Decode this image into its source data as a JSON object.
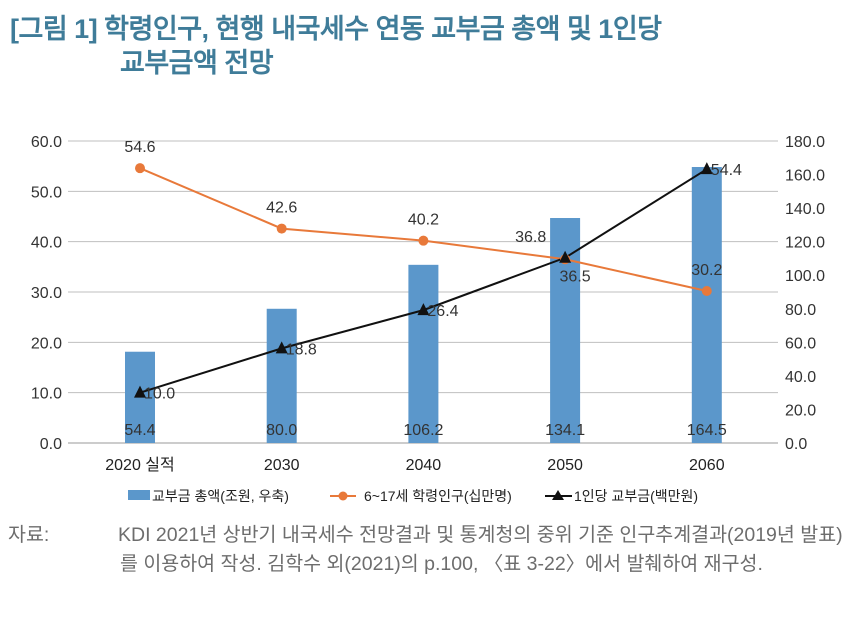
{
  "figure": {
    "title_line1": "[그림 1] 학령인구, 현행 내국세수 연동 교부금 총액 및 1인당",
    "title_line2": "교부금액 전망"
  },
  "source": {
    "label": "자료:",
    "text": "KDI 2021년 상반기 내국세수 전망결과 및 통계청의 중위 기준 인구추계결과(2019년 발표)를 이용하여 작성. 김학수 외(2021)의 p.100, 〈표 3-22〉에서 발췌하여 재구성."
  },
  "chart_data": {
    "type": "bar+line",
    "categories": [
      "2020 실적",
      "2030",
      "2040",
      "2050",
      "2060"
    ],
    "left_axis": {
      "range": [
        0,
        60
      ],
      "ticks": [
        "0.0",
        "10.0",
        "20.0",
        "30.0",
        "40.0",
        "50.0",
        "60.0"
      ]
    },
    "right_axis": {
      "range": [
        0,
        180
      ],
      "ticks": [
        "0.0",
        "20.0",
        "40.0",
        "60.0",
        "80.0",
        "100.0",
        "120.0",
        "140.0",
        "160.0",
        "180.0"
      ]
    },
    "grid": true,
    "legend_position": "bottom",
    "series": [
      {
        "name": "교부금 총액(조원, 우축)",
        "type": "bar",
        "axis": "right",
        "color": "#5b97cb",
        "values": [
          54.4,
          80.0,
          106.2,
          134.1,
          164.5
        ],
        "labels": [
          "54.4",
          "80.0",
          "106.2",
          "134.1",
          "164.5"
        ]
      },
      {
        "name": "6~17세 학령인구(십만명)",
        "type": "line",
        "marker": "circle",
        "axis": "left",
        "color": "#e8793a",
        "values": [
          54.6,
          42.6,
          40.2,
          36.5,
          30.2
        ],
        "labels": [
          "54.6",
          "42.6",
          "40.2",
          "36.5",
          "30.2"
        ]
      },
      {
        "name": "1인당 교부금(백만원)",
        "type": "line",
        "marker": "triangle",
        "axis": "left",
        "color": "#111111",
        "values": [
          10.0,
          18.8,
          26.4,
          36.8,
          54.4
        ],
        "labels": [
          "10.0",
          "18.8",
          "26.4",
          "36.8",
          "54.4"
        ]
      }
    ]
  }
}
